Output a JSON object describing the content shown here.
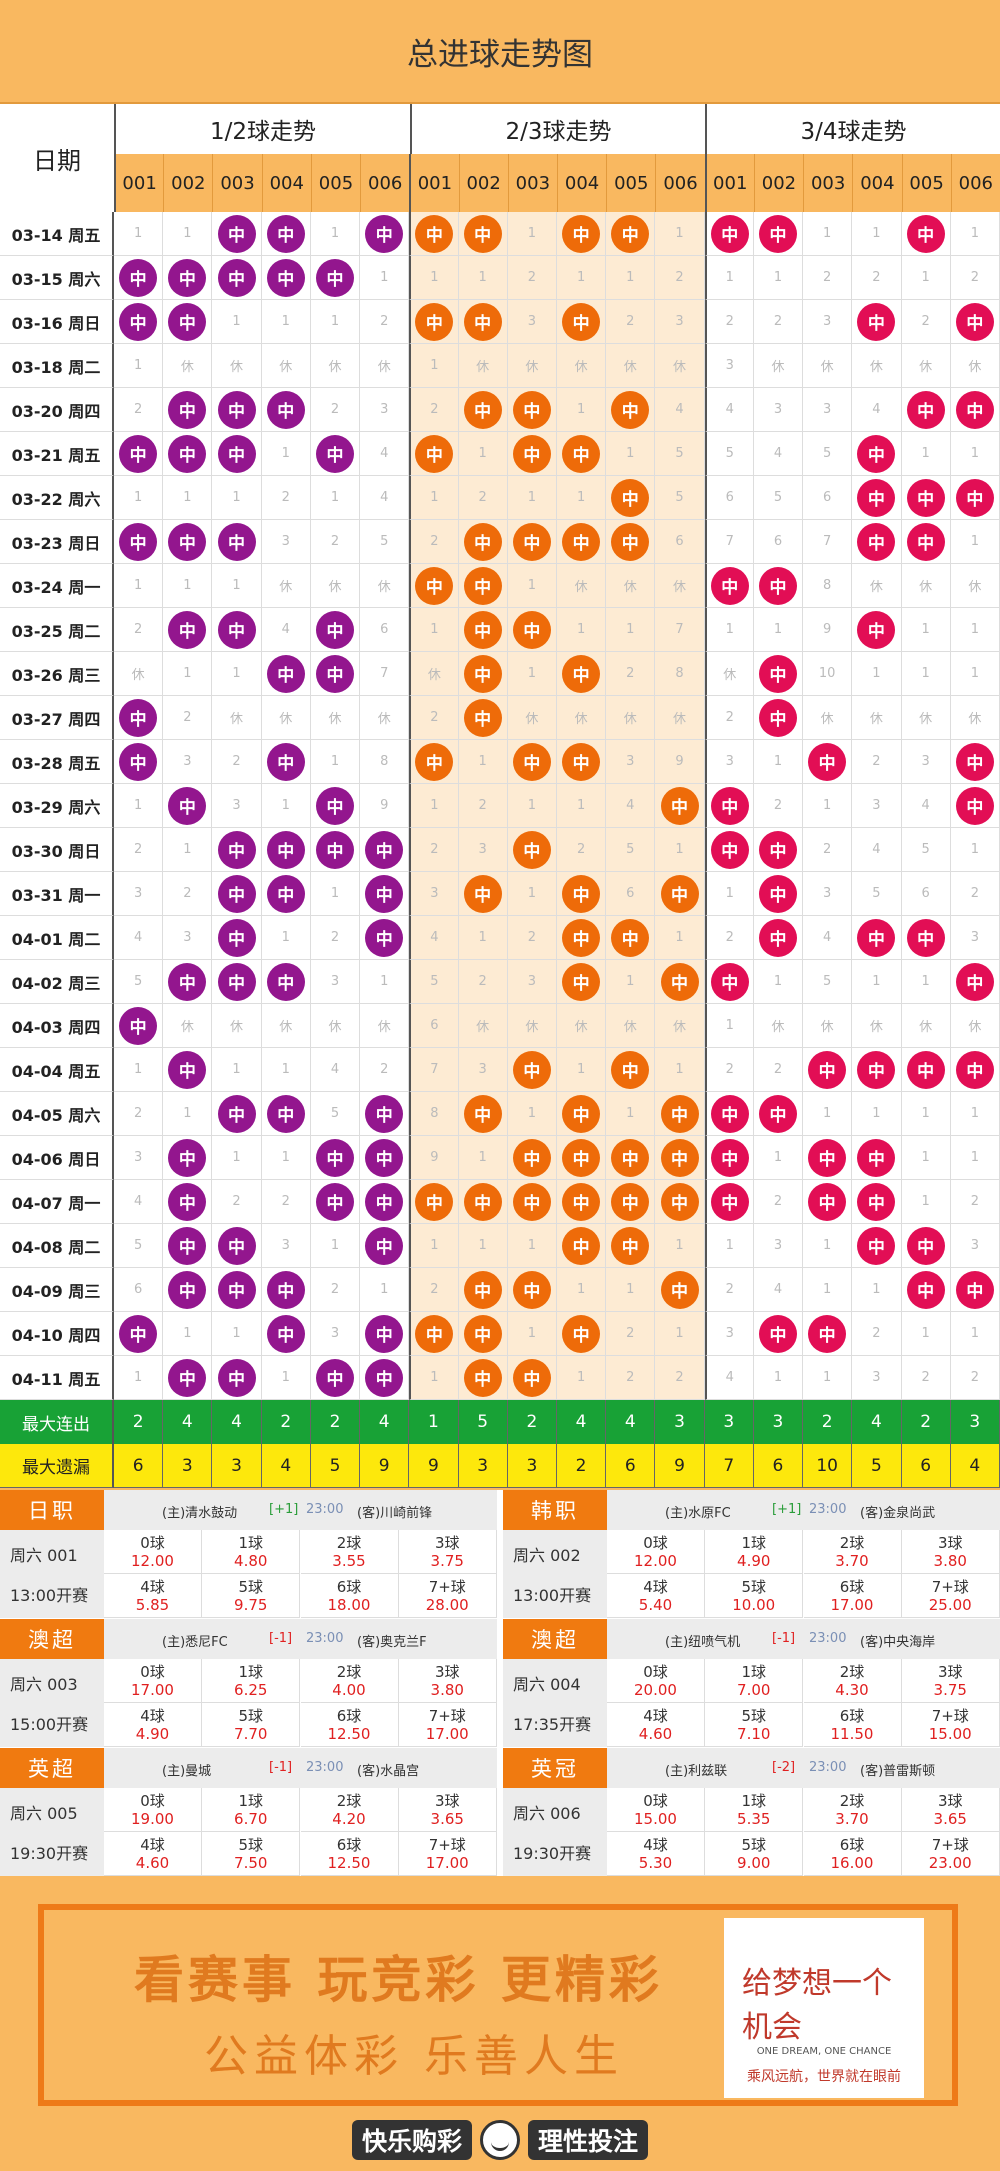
{
  "header": {
    "title": "总进球走势图"
  },
  "table": {
    "date_label": "日期",
    "groups": [
      "1/2球走势",
      "2/3球走势",
      "3/4球走势"
    ],
    "col_numbers": [
      "001",
      "002",
      "003",
      "004",
      "005",
      "006"
    ],
    "ball_label": "中",
    "rows": [
      {
        "date": "03-14 周五",
        "g1": [
          1,
          1,
          "中",
          "中",
          1,
          "中"
        ],
        "g2": [
          "中",
          "中",
          1,
          "中",
          "中",
          1
        ],
        "g3": [
          "中",
          "中",
          1,
          1,
          "中",
          1
        ]
      },
      {
        "date": "03-15 周六",
        "g1": [
          "中",
          "中",
          "中",
          "中",
          "中",
          1
        ],
        "g2": [
          1,
          1,
          2,
          1,
          1,
          2
        ],
        "g3": [
          1,
          1,
          2,
          2,
          1,
          2
        ]
      },
      {
        "date": "03-16 周日",
        "g1": [
          "中",
          "中",
          1,
          1,
          1,
          2
        ],
        "g2": [
          "中",
          "中",
          3,
          "中",
          2,
          3
        ],
        "g3": [
          2,
          2,
          3,
          "中",
          2,
          "中"
        ]
      },
      {
        "date": "03-18 周二",
        "g1": [
          1,
          "休",
          "休",
          "休",
          "休",
          "休"
        ],
        "g2": [
          1,
          "休",
          "休",
          "休",
          "休",
          "休"
        ],
        "g3": [
          3,
          "休",
          "休",
          "休",
          "休",
          "休"
        ]
      },
      {
        "date": "03-20 周四",
        "g1": [
          2,
          "中",
          "中",
          "中",
          2,
          3
        ],
        "g2": [
          2,
          "中",
          "中",
          1,
          "中",
          4
        ],
        "g3": [
          4,
          3,
          3,
          4,
          "中",
          "中"
        ]
      },
      {
        "date": "03-21 周五",
        "g1": [
          "中",
          "中",
          "中",
          1,
          "中",
          4
        ],
        "g2": [
          "中",
          1,
          "中",
          "中",
          1,
          5
        ],
        "g3": [
          5,
          4,
          5,
          "中",
          1,
          1
        ]
      },
      {
        "date": "03-22 周六",
        "g1": [
          1,
          1,
          1,
          2,
          1,
          4
        ],
        "g2": [
          1,
          2,
          1,
          1,
          "中",
          5
        ],
        "g3": [
          6,
          5,
          6,
          "中",
          "中",
          "中"
        ]
      },
      {
        "date": "03-23 周日",
        "g1": [
          "中",
          "中",
          "中",
          3,
          2,
          5
        ],
        "g2": [
          2,
          "中",
          "中",
          "中",
          "中",
          6
        ],
        "g3": [
          7,
          6,
          7,
          "中",
          "中",
          1
        ]
      },
      {
        "date": "03-24 周一",
        "g1": [
          1,
          1,
          1,
          "休",
          "休",
          "休"
        ],
        "g2": [
          "中",
          "中",
          1,
          "休",
          "休",
          "休"
        ],
        "g3": [
          "中",
          "中",
          8,
          "休",
          "休",
          "休"
        ]
      },
      {
        "date": "03-25 周二",
        "g1": [
          2,
          "中",
          "中",
          4,
          "中",
          6
        ],
        "g2": [
          1,
          "中",
          "中",
          1,
          1,
          7
        ],
        "g3": [
          1,
          1,
          9,
          "中",
          1,
          1
        ]
      },
      {
        "date": "03-26 周三",
        "g1": [
          "休",
          1,
          1,
          "中",
          "中",
          7
        ],
        "g2": [
          "休",
          "中",
          1,
          "中",
          2,
          8
        ],
        "g3": [
          "休",
          "中",
          10,
          1,
          1,
          1
        ]
      },
      {
        "date": "03-27 周四",
        "g1": [
          "中",
          2,
          "休",
          "休",
          "休",
          "休"
        ],
        "g2": [
          2,
          "中",
          "休",
          "休",
          "休",
          "休"
        ],
        "g3": [
          2,
          "中",
          "休",
          "休",
          "休",
          "休"
        ]
      },
      {
        "date": "03-28 周五",
        "g1": [
          "中",
          3,
          2,
          "中",
          1,
          8
        ],
        "g2": [
          "中",
          1,
          "中",
          "中",
          3,
          9
        ],
        "g3": [
          3,
          1,
          "中",
          2,
          3,
          "中"
        ]
      },
      {
        "date": "03-29 周六",
        "g1": [
          1,
          "中",
          3,
          1,
          "中",
          9
        ],
        "g2": [
          1,
          2,
          1,
          1,
          4,
          "中"
        ],
        "g3": [
          "中",
          2,
          1,
          3,
          4,
          "中"
        ]
      },
      {
        "date": "03-30 周日",
        "g1": [
          2,
          1,
          "中",
          "中",
          "中",
          "中"
        ],
        "g2": [
          2,
          3,
          "中",
          2,
          5,
          1
        ],
        "g3": [
          "中",
          "中",
          2,
          4,
          5,
          1
        ]
      },
      {
        "date": "03-31 周一",
        "g1": [
          3,
          2,
          "中",
          "中",
          1,
          "中"
        ],
        "g2": [
          3,
          "中",
          1,
          "中",
          6,
          "中"
        ],
        "g3": [
          1,
          "中",
          3,
          5,
          6,
          2
        ]
      },
      {
        "date": "04-01 周二",
        "g1": [
          4,
          3,
          "中",
          1,
          2,
          "中"
        ],
        "g2": [
          4,
          1,
          2,
          "中",
          "中",
          1
        ],
        "g3": [
          2,
          "中",
          4,
          "中",
          "中",
          3
        ]
      },
      {
        "date": "04-02 周三",
        "g1": [
          5,
          "中",
          "中",
          "中",
          3,
          1
        ],
        "g2": [
          5,
          2,
          3,
          "中",
          1,
          "中"
        ],
        "g3": [
          "中",
          1,
          5,
          1,
          1,
          "中"
        ]
      },
      {
        "date": "04-03 周四",
        "g1": [
          "中",
          "休",
          "休",
          "休",
          "休",
          "休"
        ],
        "g2": [
          6,
          "休",
          "休",
          "休",
          "休",
          "休"
        ],
        "g3": [
          1,
          "休",
          "休",
          "休",
          "休",
          "休"
        ]
      },
      {
        "date": "04-04 周五",
        "g1": [
          1,
          "中",
          1,
          1,
          4,
          2
        ],
        "g2": [
          7,
          3,
          "中",
          1,
          "中",
          1
        ],
        "g3": [
          2,
          2,
          "中",
          "中",
          "中",
          "中"
        ]
      },
      {
        "date": "04-05 周六",
        "g1": [
          2,
          1,
          "中",
          "中",
          5,
          "中"
        ],
        "g2": [
          8,
          "中",
          1,
          "中",
          1,
          "中"
        ],
        "g3": [
          "中",
          "中",
          1,
          1,
          1,
          1
        ]
      },
      {
        "date": "04-06 周日",
        "g1": [
          3,
          "中",
          1,
          1,
          "中",
          "中"
        ],
        "g2": [
          9,
          1,
          "中",
          "中",
          "中",
          "中"
        ],
        "g3": [
          "中",
          1,
          "中",
          "中",
          1,
          1
        ]
      },
      {
        "date": "04-07 周一",
        "g1": [
          4,
          "中",
          2,
          2,
          "中",
          "中"
        ],
        "g2": [
          "中",
          "中",
          "中",
          "中",
          "中",
          "中"
        ],
        "g3": [
          "中",
          2,
          "中",
          "中",
          1,
          2
        ]
      },
      {
        "date": "04-08 周二",
        "g1": [
          5,
          "中",
          "中",
          3,
          1,
          "中"
        ],
        "g2": [
          1,
          1,
          1,
          "中",
          "中",
          1
        ],
        "g3": [
          1,
          3,
          1,
          "中",
          "中",
          3
        ]
      },
      {
        "date": "04-09 周三",
        "g1": [
          6,
          "中",
          "中",
          "中",
          2,
          1
        ],
        "g2": [
          2,
          "中",
          "中",
          1,
          1,
          "中"
        ],
        "g3": [
          2,
          4,
          1,
          1,
          "中",
          "中"
        ]
      },
      {
        "date": "04-10 周四",
        "g1": [
          "中",
          1,
          1,
          "中",
          3,
          "中"
        ],
        "g2": [
          "中",
          "中",
          1,
          "中",
          2,
          1
        ],
        "g3": [
          3,
          "中",
          "中",
          2,
          1,
          1
        ]
      },
      {
        "date": "04-11 周五",
        "g1": [
          1,
          "中",
          "中",
          1,
          "中",
          "中"
        ],
        "g2": [
          1,
          "中",
          "中",
          1,
          2,
          2
        ],
        "g3": [
          4,
          1,
          1,
          3,
          2,
          2
        ]
      }
    ],
    "stats": [
      {
        "label": "最大连出",
        "values": [
          2,
          4,
          4,
          2,
          2,
          4,
          1,
          5,
          2,
          4,
          4,
          3,
          3,
          3,
          2,
          4,
          2,
          3
        ]
      },
      {
        "label": "最大遗漏",
        "values": [
          6,
          3,
          3,
          4,
          5,
          9,
          9,
          3,
          3,
          2,
          6,
          9,
          7,
          6,
          10,
          5,
          6,
          4
        ]
      }
    ]
  },
  "matches": [
    {
      "league": "日职",
      "code": "周六 001",
      "time": "13:00开赛",
      "home": "(主)清水鼓动",
      "handicap": "[+1]",
      "kickoff": "23:00",
      "away": "(客)川崎前锋",
      "odds": [
        "12.00",
        "4.80",
        "3.55",
        "3.75",
        "5.85",
        "9.75",
        "18.00",
        "28.00"
      ]
    },
    {
      "league": "韩职",
      "code": "周六 002",
      "time": "13:00开赛",
      "home": "(主)水原FC",
      "handicap": "[+1]",
      "kickoff": "23:00",
      "away": "(客)金泉尚武",
      "odds": [
        "12.00",
        "4.90",
        "3.70",
        "3.80",
        "5.40",
        "10.00",
        "17.00",
        "25.00"
      ]
    },
    {
      "league": "澳超",
      "code": "周六 003",
      "time": "15:00开赛",
      "home": "(主)悉尼FC",
      "handicap": "[-1]",
      "kickoff": "23:00",
      "away": "(客)奥克兰F",
      "odds": [
        "17.00",
        "6.25",
        "4.00",
        "3.80",
        "4.90",
        "7.70",
        "12.50",
        "17.00"
      ]
    },
    {
      "league": "澳超",
      "code": "周六 004",
      "time": "17:35开赛",
      "home": "(主)纽喷气机",
      "handicap": "[-1]",
      "kickoff": "23:00",
      "away": "(客)中央海岸",
      "odds": [
        "20.00",
        "7.00",
        "4.30",
        "3.75",
        "4.60",
        "7.10",
        "11.50",
        "15.00"
      ]
    },
    {
      "league": "英超",
      "code": "周六 005",
      "time": "19:30开赛",
      "home": "(主)曼城",
      "handicap": "[-1]",
      "kickoff": "23:00",
      "away": "(客)水晶宫",
      "odds": [
        "19.00",
        "6.70",
        "4.20",
        "3.65",
        "4.60",
        "7.50",
        "12.50",
        "17.00"
      ]
    },
    {
      "league": "英冠",
      "code": "周六 006",
      "time": "19:30开赛",
      "home": "(主)利兹联",
      "handicap": "[-2]",
      "kickoff": "23:00",
      "away": "(客)普雷斯顿",
      "odds": [
        "15.00",
        "5.35",
        "3.70",
        "3.65",
        "5.30",
        "9.00",
        "16.00",
        "23.00"
      ]
    }
  ],
  "goal_labels": [
    "0球",
    "1球",
    "2球",
    "3球",
    "4球",
    "5球",
    "6球",
    "7+球"
  ],
  "banner": {
    "slogan1": "看赛事 玩竞彩 更精彩",
    "slogan2": "公益体彩  乐善人生",
    "dream_big": "给梦想一个机会",
    "dream_en": "ONE DREAM, ONE CHANCE",
    "dream_cn": "乘风远航，世界就在眼前"
  },
  "footer": {
    "left": "快乐购彩",
    "right": "理性投注"
  },
  "colors": {
    "purple": "#93168e",
    "orange": "#ee6b09",
    "red": "#e20e55",
    "green": "#18a236",
    "yellow": "#fde80c"
  }
}
